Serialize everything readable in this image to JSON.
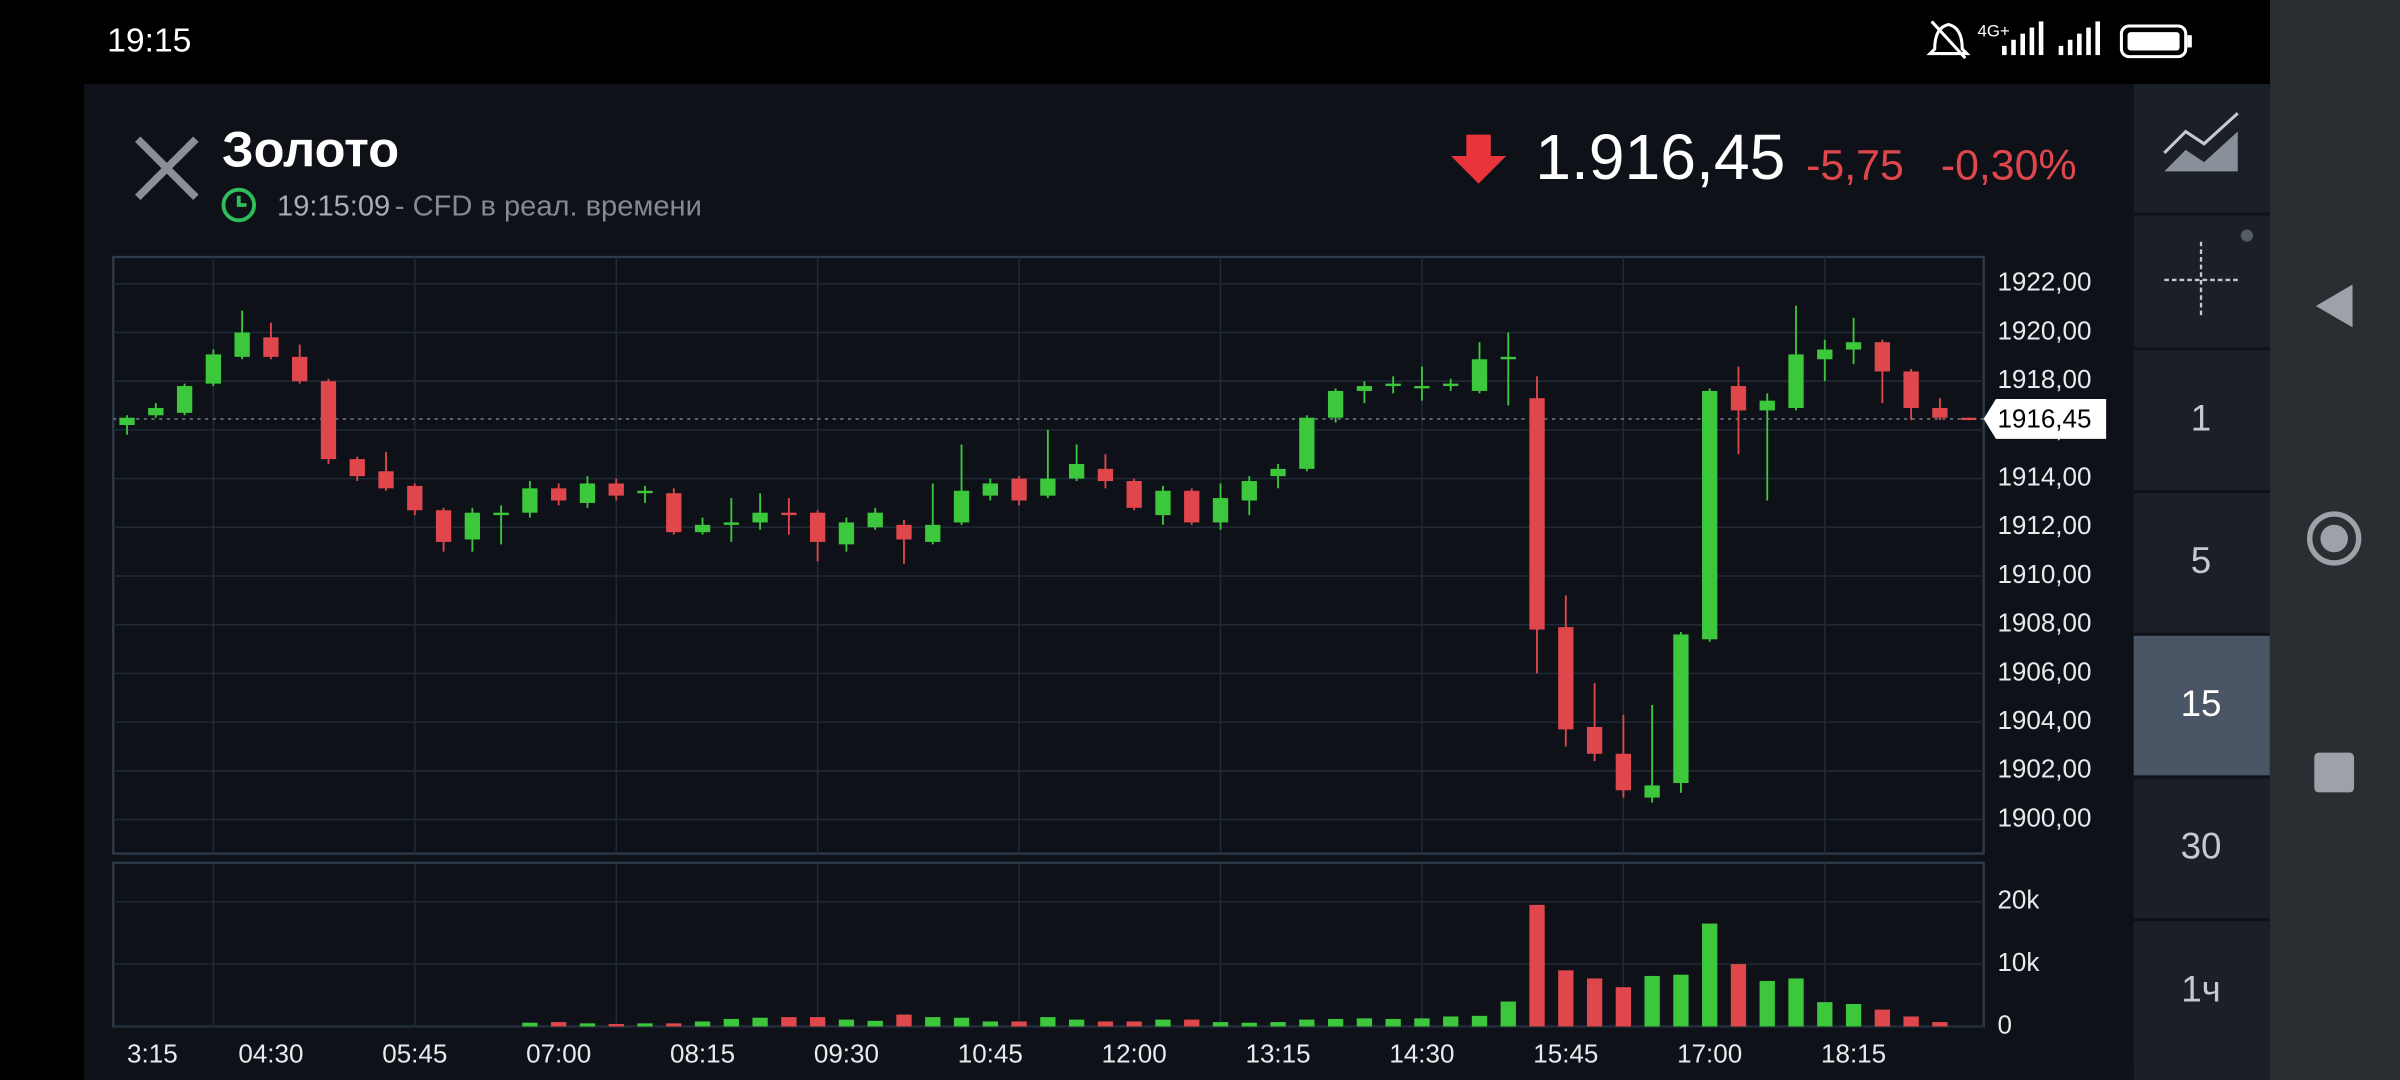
{
  "status_bar": {
    "time": "19:15",
    "network": "4G+"
  },
  "header": {
    "title": "Золото",
    "time": "19:15:09",
    "subtitle": " - CFD в реал. времени",
    "price": "1.916,45",
    "change": "-5,75",
    "change_pct": "-0,30%"
  },
  "toolbar": {
    "intervals": [
      "1",
      "5",
      "15",
      "30",
      "1ч"
    ],
    "selected": 2
  },
  "chart_data": [
    {
      "type": "candlestick",
      "up_color": "#3cc73c",
      "down_color": "#e0474c",
      "grid": true,
      "categories": [
        "3:15",
        null,
        null,
        null,
        null,
        "04:30",
        null,
        null,
        null,
        null,
        "05:45",
        null,
        null,
        null,
        null,
        "07:00",
        null,
        null,
        null,
        null,
        "08:15",
        null,
        null,
        null,
        null,
        "09:30",
        null,
        null,
        null,
        null,
        "10:45",
        null,
        null,
        null,
        null,
        "12:00",
        null,
        null,
        null,
        null,
        "13:15",
        null,
        null,
        null,
        null,
        "14:30",
        null,
        null,
        null,
        null,
        "15:45",
        null,
        null,
        null,
        null,
        "17:00",
        null,
        null,
        null,
        null,
        "18:15",
        null,
        null,
        null,
        null
      ],
      "open": [
        1916.2,
        1916.6,
        1916.7,
        1917.9,
        1919.0,
        1919.8,
        1919.0,
        1918.0,
        1914.8,
        1914.3,
        1913.7,
        1912.7,
        1911.5,
        1912.5,
        1912.6,
        1913.6,
        1913.0,
        1913.8,
        1913.4,
        1913.4,
        1911.8,
        1912.1,
        1912.2,
        1912.6,
        1912.6,
        1911.3,
        1912.0,
        1912.1,
        1911.4,
        1912.2,
        1913.3,
        1914.0,
        1913.3,
        1914.0,
        1914.4,
        1913.9,
        1912.5,
        1913.5,
        1912.2,
        1913.1,
        1914.1,
        1914.4,
        1916.5,
        1917.6,
        1917.8,
        1917.8,
        1917.8,
        1917.6,
        1918.9,
        1917.3,
        1907.9,
        1903.8,
        1902.7,
        1900.9,
        1901.5,
        1907.4,
        1917.8,
        1916.8,
        1916.9,
        1918.9,
        1919.3,
        1919.6,
        1918.4,
        1916.9,
        1916.5
      ],
      "high": [
        1916.6,
        1917.1,
        1917.9,
        1919.3,
        1920.9,
        1920.4,
        1919.5,
        1918.1,
        1914.9,
        1915.1,
        1913.8,
        1912.8,
        1912.8,
        1912.9,
        1913.9,
        1913.8,
        1914.1,
        1914.0,
        1913.7,
        1913.6,
        1912.4,
        1913.2,
        1913.4,
        1913.2,
        1912.7,
        1912.4,
        1912.8,
        1912.3,
        1913.8,
        1915.4,
        1914.0,
        1914.1,
        1916.0,
        1915.4,
        1915.0,
        1914.0,
        1913.7,
        1913.6,
        1913.8,
        1914.1,
        1914.6,
        1916.6,
        1917.7,
        1918.0,
        1918.2,
        1918.6,
        1918.1,
        1919.6,
        1920.0,
        1918.2,
        1909.2,
        1905.6,
        1904.3,
        1904.7,
        1907.7,
        1917.7,
        1918.6,
        1917.5,
        1921.1,
        1919.7,
        1920.6,
        1919.7,
        1918.5,
        1917.3,
        1916.5
      ],
      "low": [
        1915.8,
        1916.5,
        1916.6,
        1917.8,
        1918.9,
        1918.9,
        1917.9,
        1914.6,
        1913.9,
        1913.5,
        1912.5,
        1911.0,
        1911.0,
        1911.3,
        1912.4,
        1912.9,
        1912.8,
        1913.1,
        1913.0,
        1911.7,
        1911.7,
        1911.4,
        1911.9,
        1911.7,
        1910.6,
        1911.0,
        1911.9,
        1910.5,
        1911.3,
        1912.1,
        1913.1,
        1912.9,
        1913.2,
        1913.9,
        1913.6,
        1912.7,
        1912.1,
        1912.1,
        1911.9,
        1912.5,
        1913.6,
        1914.3,
        1916.3,
        1917.1,
        1917.5,
        1917.2,
        1917.6,
        1917.5,
        1917.0,
        1906.0,
        1903.0,
        1902.4,
        1900.9,
        1900.7,
        1901.1,
        1907.3,
        1915.0,
        1913.1,
        1916.8,
        1918.0,
        1918.7,
        1917.1,
        1916.4,
        1916.4,
        1916.4
      ],
      "close": [
        1916.5,
        1916.9,
        1917.8,
        1919.1,
        1920.0,
        1919.0,
        1918.0,
        1914.8,
        1914.1,
        1913.6,
        1912.7,
        1911.4,
        1912.6,
        1912.6,
        1913.6,
        1913.1,
        1913.8,
        1913.3,
        1913.5,
        1911.8,
        1912.1,
        1912.2,
        1912.6,
        1912.5,
        1911.4,
        1912.2,
        1912.6,
        1911.5,
        1912.1,
        1913.5,
        1913.8,
        1913.1,
        1914.0,
        1914.6,
        1913.9,
        1912.8,
        1913.5,
        1912.2,
        1913.2,
        1913.9,
        1914.4,
        1916.5,
        1917.6,
        1917.8,
        1917.9,
        1917.8,
        1917.9,
        1918.9,
        1919.0,
        1907.8,
        1903.7,
        1902.7,
        1901.2,
        1901.4,
        1907.6,
        1917.6,
        1916.8,
        1917.2,
        1919.1,
        1919.3,
        1919.6,
        1918.4,
        1916.9,
        1916.5,
        1916.45
      ],
      "ylim": [
        1898.6,
        1923.1
      ],
      "yticks": [
        {
          "value": 1900,
          "label": "1900,00"
        },
        {
          "value": 1902,
          "label": "1902,00"
        },
        {
          "value": 1904,
          "label": "1904,00"
        },
        {
          "value": 1906,
          "label": "1906,00"
        },
        {
          "value": 1908,
          "label": "1908,00"
        },
        {
          "value": 1910,
          "label": "1910,00"
        },
        {
          "value": 1912,
          "label": "1912,00"
        },
        {
          "value": 1914,
          "label": "1914,00"
        },
        {
          "value": 1916,
          "label": "1916,00"
        },
        {
          "value": 1918,
          "label": "1918,00"
        },
        {
          "value": 1920,
          "label": "1920,00"
        },
        {
          "value": 1922,
          "label": "1922,00"
        }
      ],
      "last_price": {
        "value": 1916.45,
        "label": "1916,45"
      }
    },
    {
      "type": "bar",
      "up_color": "#3cc73c",
      "down_color": "#e0474c",
      "grid": true,
      "values": [
        0,
        0,
        0,
        0,
        0,
        0,
        0,
        0,
        0,
        0,
        0,
        0,
        0,
        0,
        600,
        700,
        500,
        400,
        500,
        500,
        800,
        1200,
        1400,
        1500,
        1500,
        1100,
        900,
        1900,
        1500,
        1400,
        800,
        800,
        1500,
        1100,
        800,
        800,
        1100,
        1100,
        700,
        600,
        700,
        1100,
        1200,
        1300,
        1200,
        1300,
        1600,
        1700,
        4000,
        19500,
        9000,
        7700,
        6300,
        8100,
        8300,
        16500,
        10000,
        7300,
        7700,
        3900,
        3600,
        2700,
        1600,
        700,
        0
      ],
      "ylim": [
        0,
        26250
      ],
      "yticks": [
        0,
        {
          "value": 10000,
          "label": "10k"
        },
        {
          "value": 20000,
          "label": "20k"
        }
      ]
    }
  ]
}
